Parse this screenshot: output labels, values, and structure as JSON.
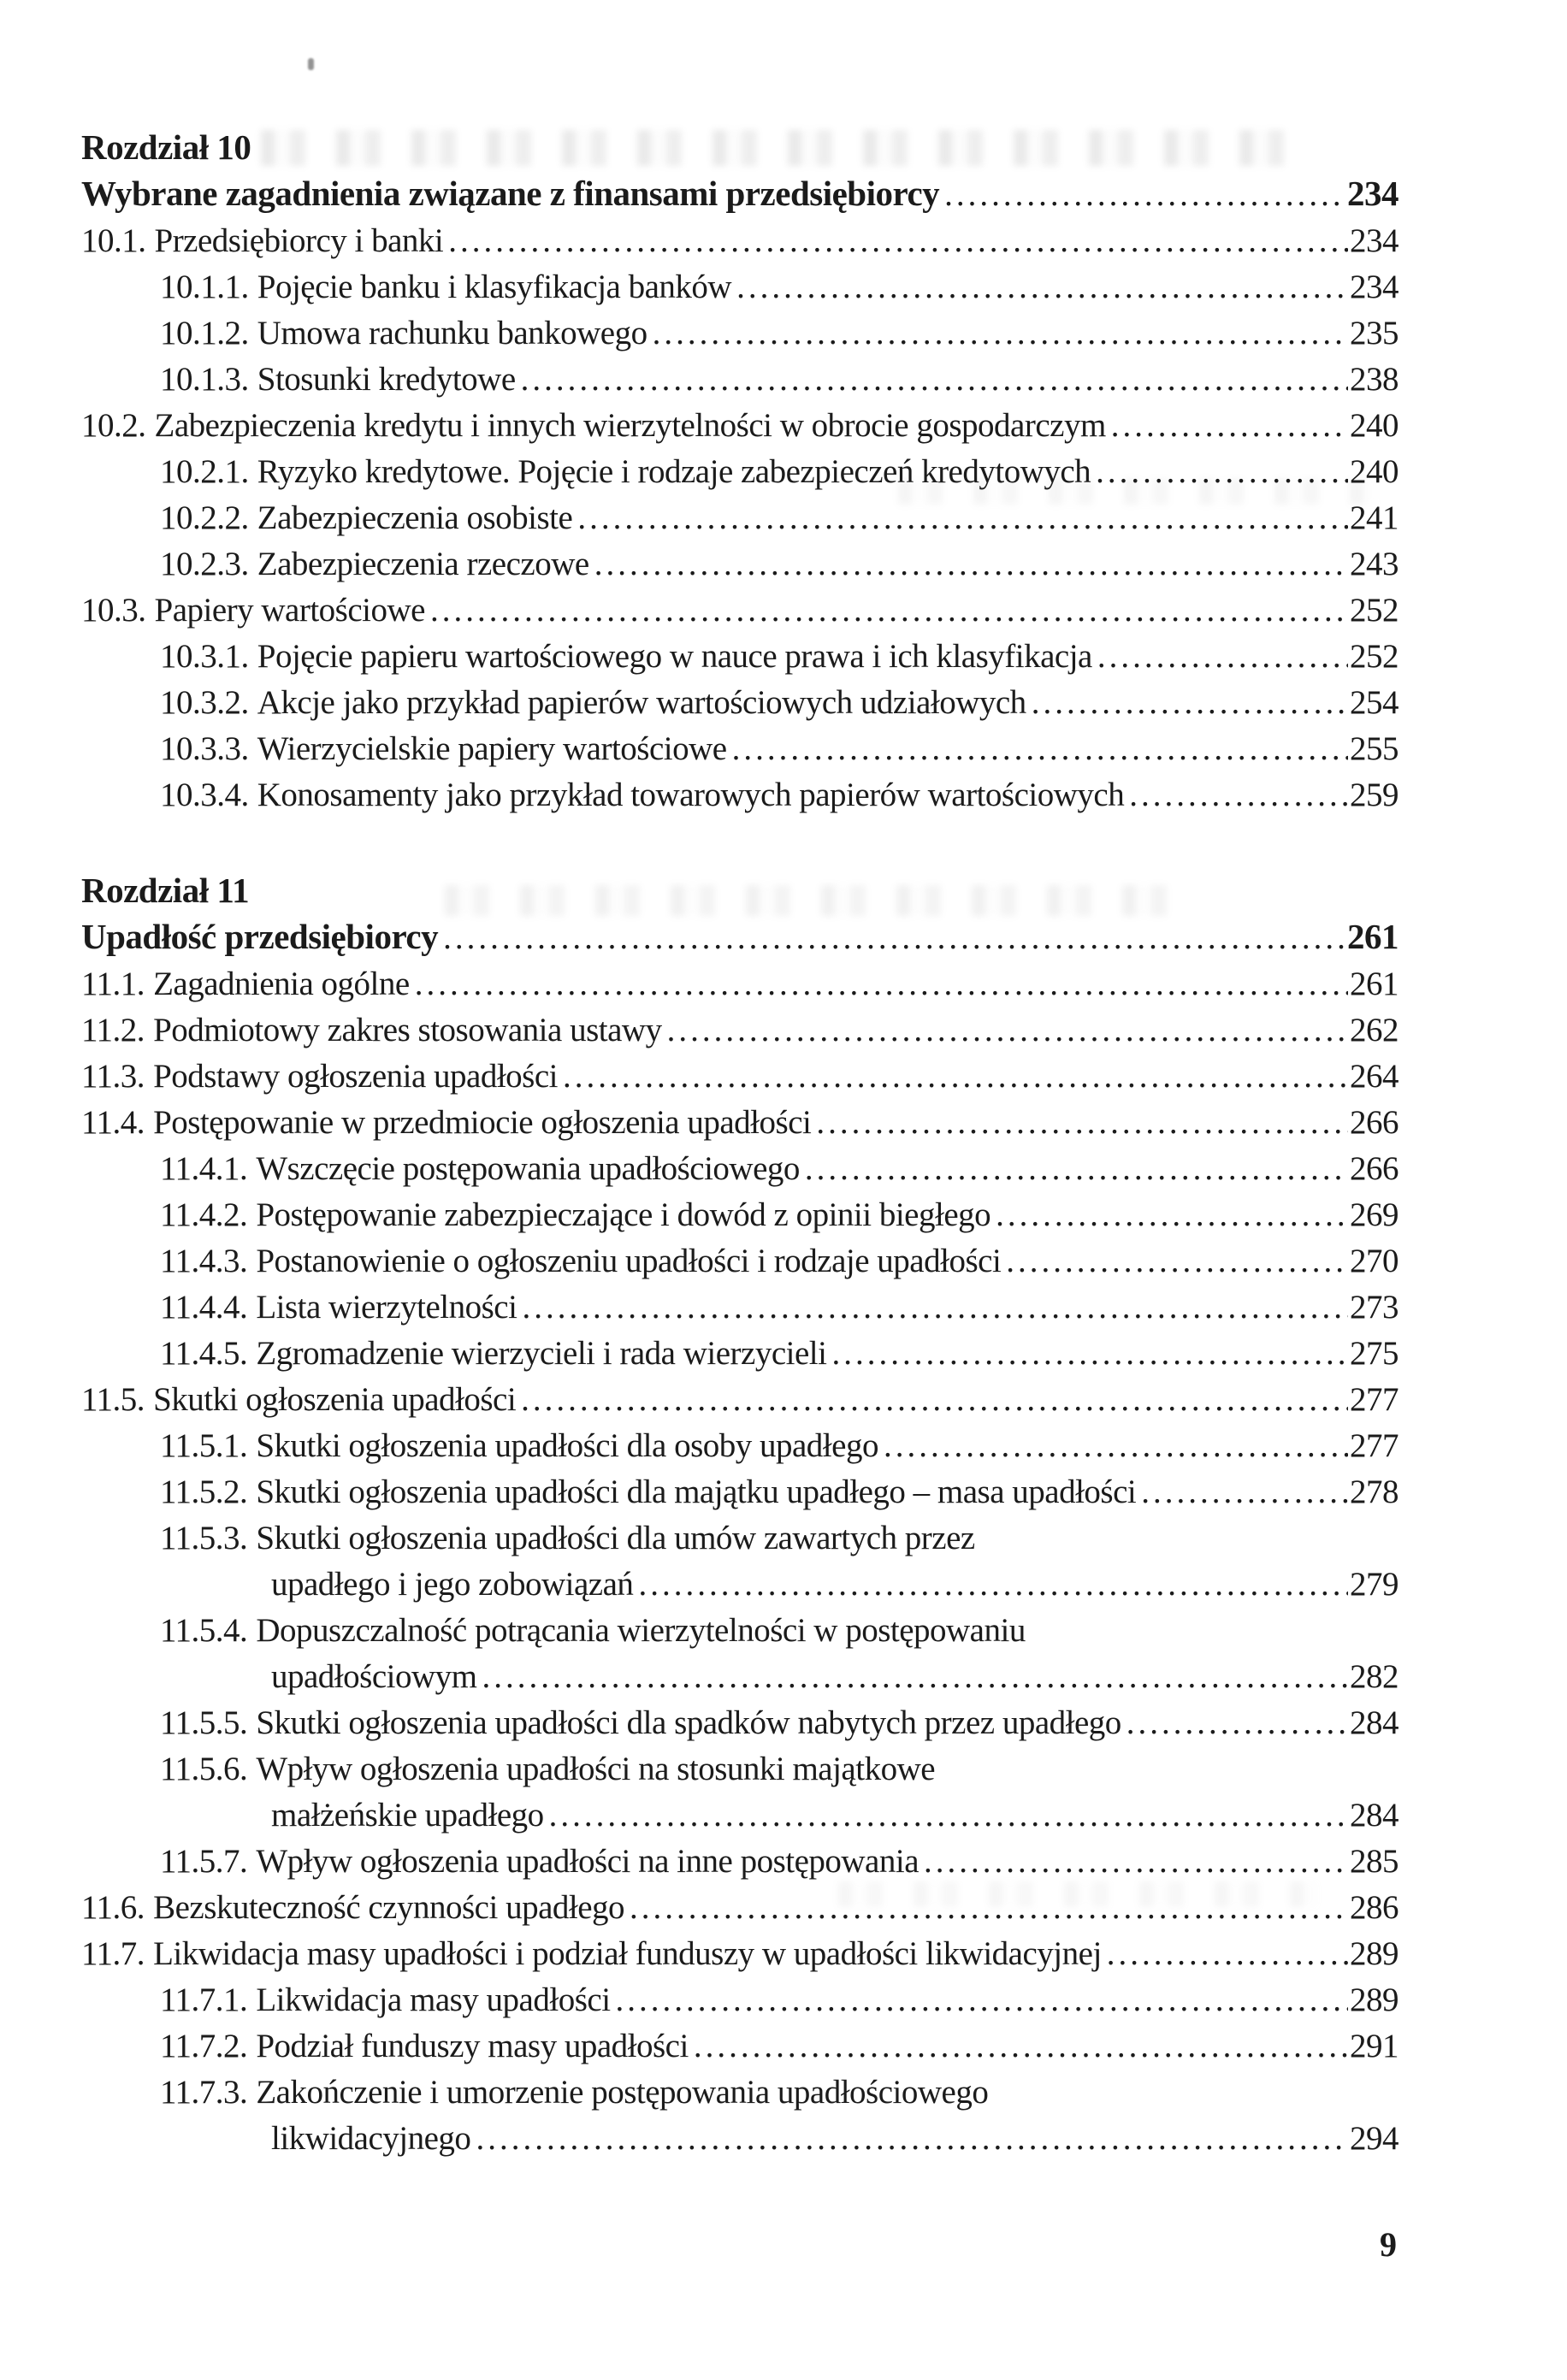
{
  "colors": {
    "ink": "#1b1b1b",
    "paper": "#ffffff"
  },
  "page": {
    "number": "9"
  },
  "toc": {
    "chapters": [
      {
        "label": "Rozdział 10",
        "title": "Wybrane zagadnienia związane z finansami przedsiębiorcy",
        "page": "234",
        "entries": [
          {
            "indent": 1,
            "num": "10.1.",
            "text": "Przedsiębiorcy i banki",
            "page": "234"
          },
          {
            "indent": 2,
            "num": "10.1.1.",
            "text": "Pojęcie banku i klasyfikacja banków",
            "page": "234"
          },
          {
            "indent": 2,
            "num": "10.1.2.",
            "text": "Umowa rachunku bankowego",
            "page": "235"
          },
          {
            "indent": 2,
            "num": "10.1.3.",
            "text": "Stosunki kredytowe",
            "page": "238"
          },
          {
            "indent": 1,
            "num": "10.2.",
            "text": "Zabezpieczenia kredytu i innych wierzytelności w obrocie gospodarczym",
            "page": "240"
          },
          {
            "indent": 2,
            "num": "10.2.1.",
            "text": "Ryzyko kredytowe. Pojęcie i rodzaje zabezpieczeń kredytowych",
            "page": "240"
          },
          {
            "indent": 2,
            "num": "10.2.2.",
            "text": "Zabezpieczenia osobiste",
            "page": "241"
          },
          {
            "indent": 2,
            "num": "10.2.3.",
            "text": "Zabezpieczenia rzeczowe",
            "page": "243"
          },
          {
            "indent": 1,
            "num": "10.3.",
            "text": "Papiery wartościowe",
            "page": "252"
          },
          {
            "indent": 2,
            "num": "10.3.1.",
            "text": "Pojęcie papieru wartościowego w nauce prawa i ich klasyfikacja",
            "page": "252"
          },
          {
            "indent": 2,
            "num": "10.3.2.",
            "text": "Akcje jako przykład papierów wartościowych udziałowych",
            "page": "254"
          },
          {
            "indent": 2,
            "num": "10.3.3.",
            "text": "Wierzycielskie papiery wartościowe",
            "page": "255"
          },
          {
            "indent": 2,
            "num": "10.3.4.",
            "text": "Konosamenty jako przykład towarowych papierów wartościowych",
            "page": "259"
          }
        ]
      },
      {
        "label": "Rozdział 11",
        "title": "Upadłość przedsiębiorcy",
        "page": "261",
        "entries": [
          {
            "indent": 1,
            "num": "11.1.",
            "text": "Zagadnienia ogólne",
            "page": "261"
          },
          {
            "indent": 1,
            "num": "11.2.",
            "text": "Podmiotowy zakres stosowania ustawy",
            "page": "262"
          },
          {
            "indent": 1,
            "num": "11.3.",
            "text": "Podstawy ogłoszenia upadłości",
            "page": "264"
          },
          {
            "indent": 1,
            "num": "11.4.",
            "text": "Postępowanie w przedmiocie ogłoszenia upadłości",
            "page": "266"
          },
          {
            "indent": 2,
            "num": "11.4.1.",
            "text": "Wszczęcie postępowania upadłościowego",
            "page": "266"
          },
          {
            "indent": 2,
            "num": "11.4.2.",
            "text": "Postępowanie zabezpieczające i dowód z opinii biegłego",
            "page": "269"
          },
          {
            "indent": 2,
            "num": "11.4.3.",
            "text": "Postanowienie o ogłoszeniu upadłości i rodzaje upadłości",
            "page": "270"
          },
          {
            "indent": 2,
            "num": "11.4.4.",
            "text": "Lista wierzytelności",
            "page": "273"
          },
          {
            "indent": 2,
            "num": "11.4.5.",
            "text": "Zgromadzenie wierzycieli i rada wierzycieli",
            "page": "275"
          },
          {
            "indent": 1,
            "num": "11.5.",
            "text": "Skutki ogłoszenia upadłości",
            "page": "277"
          },
          {
            "indent": 2,
            "num": "11.5.1.",
            "text": "Skutki ogłoszenia upadłości dla osoby upadłego",
            "page": "277"
          },
          {
            "indent": 2,
            "num": "11.5.2.",
            "text": "Skutki ogłoszenia upadłości dla majątku upadłego – masa upadłości",
            "page": "278"
          },
          {
            "indent": 2,
            "num": "11.5.3.",
            "text": "Skutki ogłoszenia upadłości dla umów zawartych przez",
            "page": ""
          },
          {
            "indent": 3,
            "num": "",
            "text": "upadłego i jego zobowiązań",
            "page": "279"
          },
          {
            "indent": 2,
            "num": "11.5.4.",
            "text": "Dopuszczalność potrącania wierzytelności w postępowaniu",
            "page": ""
          },
          {
            "indent": 3,
            "num": "",
            "text": "upadłościowym",
            "page": "282"
          },
          {
            "indent": 2,
            "num": "11.5.5.",
            "text": "Skutki ogłoszenia upadłości dla spadków nabytych przez upadłego",
            "page": "284"
          },
          {
            "indent": 2,
            "num": "11.5.6.",
            "text": "Wpływ ogłoszenia upadłości na stosunki majątkowe",
            "page": ""
          },
          {
            "indent": 3,
            "num": "",
            "text": "małżeńskie upadłego",
            "page": "284"
          },
          {
            "indent": 2,
            "num": "11.5.7.",
            "text": "Wpływ ogłoszenia upadłości na inne postępowania",
            "page": "285"
          },
          {
            "indent": 1,
            "num": "11.6.",
            "text": "Bezskuteczność czynności upadłego",
            "page": "286"
          },
          {
            "indent": 1,
            "num": "11.7.",
            "text": "Likwidacja masy upadłości i podział funduszy w upadłości likwidacyjnej",
            "page": "289"
          },
          {
            "indent": 2,
            "num": "11.7.1.",
            "text": "Likwidacja masy upadłości",
            "page": "289"
          },
          {
            "indent": 2,
            "num": "11.7.2.",
            "text": "Podział funduszy masy upadłości",
            "page": "291"
          },
          {
            "indent": 2,
            "num": "11.7.3.",
            "text": "Zakończenie i umorzenie postępowania upadłościowego",
            "page": ""
          },
          {
            "indent": 3,
            "num": "",
            "text": "likwidacyjnego",
            "page": "294"
          }
        ]
      }
    ]
  }
}
